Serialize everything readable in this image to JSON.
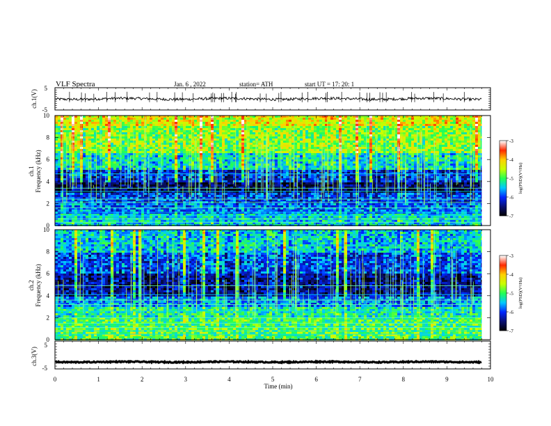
{
  "header": {
    "title": "VLF  Spectra",
    "date": "Jan.  6  , 2022",
    "station": "station= ATH",
    "start": "start  UT  =    17: 20: 1"
  },
  "chart_data": [
    {
      "type": "line",
      "panel": "ch1-waveform",
      "ylabel": "ch.1(V)",
      "ylim": [
        -5,
        5
      ],
      "yticks": [
        "5",
        "-5"
      ],
      "xlim": [
        0,
        10
      ],
      "x_end_min": 9.8,
      "baseline_v": 0,
      "noise_amplitude_v": 0.6,
      "line_color": "#000000"
    },
    {
      "type": "heatmap",
      "panel": "ch1-spectrogram",
      "ylabel_channel": "ch.1",
      "ylabel": "Frequency  (kHz)",
      "ylim": [
        0,
        10
      ],
      "yticks": [
        "0",
        "2",
        "4",
        "6",
        "8",
        "10"
      ],
      "xlim": [
        0,
        10
      ],
      "x_end_min": 9.8,
      "colorbar": {
        "label": "log(PSD)(V²/Hz)",
        "ticks": [
          "-3",
          "-4",
          "-5",
          "-6",
          "-7"
        ],
        "range": [
          -7,
          -3
        ],
        "colors": [
          "#000000",
          "#0a1070",
          "#0026ff",
          "#00c8ff",
          "#22ff55",
          "#c8ff00",
          "#ffd000",
          "#ff2a00",
          "#ffffff"
        ]
      },
      "bands_khz": [
        {
          "f0": 9.0,
          "f1": 10.0,
          "level": -4.3
        },
        {
          "f0": 6.5,
          "f1": 9.0,
          "level": -4.7
        },
        {
          "f0": 5.0,
          "f1": 6.5,
          "level": -5.3
        },
        {
          "f0": 4.0,
          "f1": 5.0,
          "level": -6.1
        },
        {
          "f0": 3.0,
          "f1": 4.0,
          "level": -6.6
        },
        {
          "f0": 2.0,
          "f1": 3.0,
          "level": -6.0
        },
        {
          "f0": 1.0,
          "f1": 2.0,
          "level": -5.8
        },
        {
          "f0": 0.0,
          "f1": 1.0,
          "level": -5.4
        }
      ],
      "lines_khz": [
        0.3,
        0.6,
        0.9,
        1.2,
        1.6,
        2.1,
        2.4,
        3.1,
        3.4,
        4.7
      ]
    },
    {
      "type": "heatmap",
      "panel": "ch2-spectrogram",
      "ylabel_channel": "ch.2",
      "ylabel": "Frequency  (kHz)",
      "ylim": [
        0,
        10
      ],
      "yticks": [
        "0",
        "2",
        "4",
        "6",
        "8",
        "10"
      ],
      "xlim": [
        0,
        10
      ],
      "x_end_min": 9.8,
      "colorbar": {
        "label": "log(PSD)(V²/Hz)",
        "ticks": [
          "-3",
          "-4",
          "-5",
          "-6",
          "-7"
        ],
        "range": [
          -7,
          -3
        ],
        "colors": [
          "#000000",
          "#0a1070",
          "#0026ff",
          "#00c8ff",
          "#22ff55",
          "#c8ff00",
          "#ffd000",
          "#ff2a00",
          "#ffffff"
        ]
      },
      "bands_khz": [
        {
          "f0": 8.0,
          "f1": 10.0,
          "level": -5.4
        },
        {
          "f0": 6.0,
          "f1": 8.0,
          "level": -5.9
        },
        {
          "f0": 4.0,
          "f1": 6.0,
          "level": -6.4
        },
        {
          "f0": 3.0,
          "f1": 4.0,
          "level": -5.7
        },
        {
          "f0": 2.0,
          "f1": 3.0,
          "level": -5.2
        },
        {
          "f0": 1.0,
          "f1": 2.0,
          "level": -5.0
        },
        {
          "f0": 0.0,
          "f1": 1.0,
          "level": -4.9
        }
      ],
      "lines_khz": [
        0.5,
        0.8,
        1.1,
        1.5,
        2.0,
        2.6,
        3.2,
        3.6,
        4.1,
        4.9
      ]
    },
    {
      "type": "line",
      "panel": "ch3-waveform",
      "ylabel": "ch.3(V)",
      "ylim": [
        -5,
        5
      ],
      "yticks": [
        "5",
        "-5"
      ],
      "xlim": [
        0,
        10
      ],
      "x_end_min": 9.8,
      "baseline_v": -2.5,
      "noise_amplitude_v": 0.2,
      "line_color": "#000000"
    }
  ],
  "xaxis": {
    "label": "Time  (min)",
    "ticks": [
      "0",
      "1",
      "2",
      "3",
      "4",
      "5",
      "6",
      "7",
      "8",
      "9",
      "10"
    ],
    "range": [
      0,
      10
    ]
  }
}
